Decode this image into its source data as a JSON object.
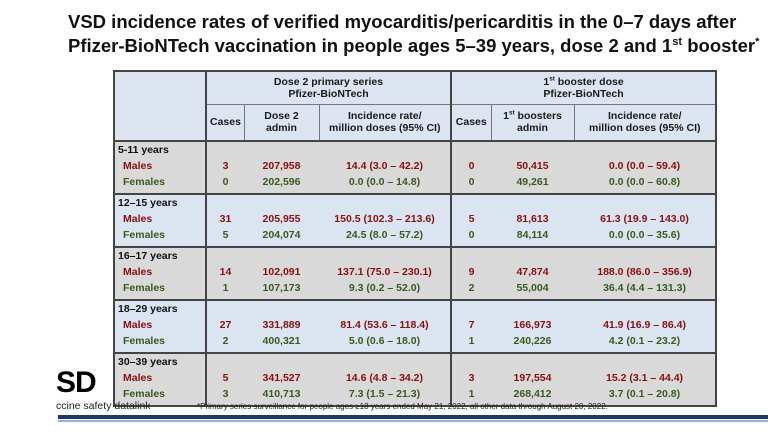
{
  "title": {
    "line1": "VSD incidence rates of verified myocarditis/pericarditis in the 0–7 days after",
    "line2": "Pfizer-BioNTech vaccination in people ages 5–39 years, dose 2 and 1",
    "line2_sup": "st",
    "line2_rest": " booster",
    "line2_mark": "*"
  },
  "table": {
    "group_headers": [
      {
        "line1": {
          "text": "Dose 2 primary series"
        },
        "line2": "Pfizer-BioNTech"
      },
      {
        "line1": {
          "pre": "1",
          "sup": "st",
          "post": " booster dose"
        },
        "line2": "Pfizer-BioNTech"
      }
    ],
    "columns": [
      {
        "line1": {
          "text": "Cases"
        }
      },
      {
        "line1": {
          "text": "Dose 2"
        },
        "line2": "admin"
      },
      {
        "line1": {
          "text": "Incidence rate/"
        },
        "line2": "million doses (95% CI)"
      },
      {
        "line1": {
          "text": "Cases"
        }
      },
      {
        "line1": {
          "pre": "1",
          "sup": "st",
          "post": " boosters"
        },
        "line2": "admin"
      },
      {
        "line1": {
          "text": "Incidence rate/"
        },
        "line2": "million doses (95% CI)"
      }
    ],
    "groups": [
      {
        "label": "5-11 years",
        "rows": [
          {
            "sex": "Males",
            "cells": [
              "3",
              "207,958",
              "14.4 (3.0 – 42.2)",
              "0",
              "50,415",
              "0.0 (0.0 – 59.4)"
            ]
          },
          {
            "sex": "Females",
            "cells": [
              "0",
              "202,596",
              "0.0 (0.0 – 14.8)",
              "0",
              "49,261",
              "0.0 (0.0 – 60.8)"
            ]
          }
        ]
      },
      {
        "label": "12–15 years",
        "rows": [
          {
            "sex": "Males",
            "cells": [
              "31",
              "205,955",
              "150.5 (102.3 – 213.6)",
              "5",
              "81,613",
              "61.3 (19.9 – 143.0)"
            ]
          },
          {
            "sex": "Females",
            "cells": [
              "5",
              "204,074",
              "24.5 (8.0 – 57.2)",
              "0",
              "84,114",
              "0.0 (0.0 – 35.6)"
            ]
          }
        ]
      },
      {
        "label": "16–17 years",
        "rows": [
          {
            "sex": "Males",
            "cells": [
              "14",
              "102,091",
              "137.1 (75.0 – 230.1)",
              "9",
              "47,874",
              "188.0 (86.0 – 356.9)"
            ]
          },
          {
            "sex": "Females",
            "cells": [
              "1",
              "107,173",
              "9.3 (0.2 – 52.0)",
              "2",
              "55,004",
              "36.4 (4.4 – 131.3)"
            ]
          }
        ]
      },
      {
        "label": "18–29 years",
        "rows": [
          {
            "sex": "Males",
            "cells": [
              "27",
              "331,889",
              "81.4 (53.6 – 118.4)",
              "7",
              "166,973",
              "41.9 (16.9 – 86.4)"
            ]
          },
          {
            "sex": "Females",
            "cells": [
              "2",
              "400,321",
              "5.0 (0.6 – 18.0)",
              "1",
              "240,226",
              "4.2 (0.1 – 23.2)"
            ]
          }
        ]
      },
      {
        "label": "30–39 years",
        "rows": [
          {
            "sex": "Males",
            "cells": [
              "5",
              "341,527",
              "14.6 (4.8 – 34.2)",
              "3",
              "197,554",
              "15.2 (3.1 – 44.4)"
            ]
          },
          {
            "sex": "Females",
            "cells": [
              "3",
              "410,713",
              "7.3 (1.5 – 21.3)",
              "1",
              "268,412",
              "3.7 (0.1 – 20.8)"
            ]
          }
        ]
      }
    ]
  },
  "logo": {
    "mark": "SD",
    "text": "ccine safety datalink"
  },
  "footnote": "*Primary series surveillance for people ages ≥18 years ended May 21, 2022, all other data through August 20, 2022."
}
